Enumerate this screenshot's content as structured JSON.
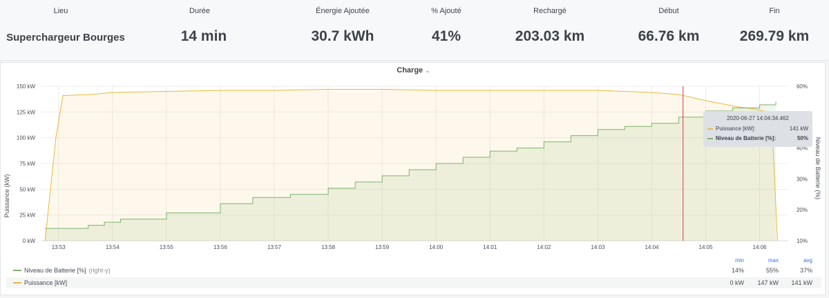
{
  "stats": [
    {
      "label": "Lieu",
      "value": "Superchargeur Bourges"
    },
    {
      "label": "Durée",
      "value": "14 min"
    },
    {
      "label": "Énergie Ajoutée",
      "value": "30.7 kWh"
    },
    {
      "label": "% Ajouté",
      "value": "41%"
    },
    {
      "label": "Rechargé",
      "value": "203.03 km"
    },
    {
      "label": "Début",
      "value": "66.76 km"
    },
    {
      "label": "Fin",
      "value": "269.79 km"
    }
  ],
  "panel": {
    "title": "Charge",
    "caret": "⌄"
  },
  "colors": {
    "power": "#eab839",
    "battery": "#7eb26d",
    "cursor": "#e02f44",
    "legend_head": "#3274d9"
  },
  "tooltip": {
    "time": "2020-06-27 14:04:34.462",
    "rows": [
      {
        "name": "Puissance [kW]:",
        "value": "141 kW"
      },
      {
        "name": "Niveau de Batterie [%]:",
        "value": "50%"
      }
    ]
  },
  "legend": {
    "headers": [
      "min",
      "max",
      "avg"
    ],
    "rows": [
      {
        "name": "Niveau de Batterie [%]",
        "axis": "(right-y)",
        "min": "14%",
        "max": "55%",
        "avg": "37%"
      },
      {
        "name": "Puissance [kW]",
        "axis": "",
        "min": "0 kW",
        "max": "147 kW",
        "avg": "141 kW"
      }
    ]
  },
  "chart_data": {
    "type": "area",
    "ylabel": "Puissance (kW)",
    "y2label": "Niveau de Batterie (%)",
    "ylim": [
      0,
      150
    ],
    "y2lim": [
      10,
      60
    ],
    "yticks": [
      "0 kW",
      "25 kW",
      "50 kW",
      "75 kW",
      "100 kW",
      "125 kW",
      "150 kW"
    ],
    "y2ticks": [
      "10%",
      "20%",
      "30%",
      "40%",
      "50%",
      "60%"
    ],
    "xticks": [
      "13:53",
      "13:54",
      "13:55",
      "13:56",
      "13:57",
      "13:58",
      "13:59",
      "14:00",
      "14:01",
      "14:02",
      "14:03",
      "14:04",
      "14:05",
      "14:06"
    ],
    "xlim_minutes": [
      -0.33,
      13.53
    ],
    "cursor_minute": 11.58,
    "grid": true,
    "series": [
      {
        "name": "Puissance [kW]",
        "axis": "left",
        "points": [
          [
            -0.25,
            0
          ],
          [
            -0.05,
            100
          ],
          [
            0.08,
            141
          ],
          [
            0.6,
            142
          ],
          [
            1.0,
            144
          ],
          [
            2.0,
            145
          ],
          [
            3.0,
            146
          ],
          [
            4.0,
            146
          ],
          [
            5.0,
            147
          ],
          [
            6.0,
            147
          ],
          [
            7.0,
            146
          ],
          [
            8.0,
            146
          ],
          [
            9.0,
            146
          ],
          [
            10.0,
            146
          ],
          [
            10.5,
            145
          ],
          [
            11.0,
            144
          ],
          [
            11.5,
            142
          ],
          [
            12.0,
            136
          ],
          [
            12.3,
            133
          ],
          [
            12.6,
            130
          ],
          [
            12.9,
            128
          ],
          [
            13.15,
            125
          ],
          [
            13.25,
            90
          ],
          [
            13.33,
            0
          ]
        ]
      },
      {
        "name": "Niveau de Batterie [%]",
        "axis": "right",
        "points": [
          [
            -0.25,
            14
          ],
          [
            0.3,
            14
          ],
          [
            0.55,
            15
          ],
          [
            0.85,
            16
          ],
          [
            1.15,
            17
          ],
          [
            2.0,
            19
          ],
          [
            3.0,
            22
          ],
          [
            3.6,
            24
          ],
          [
            4.0,
            24
          ],
          [
            4.3,
            25
          ],
          [
            5.0,
            27
          ],
          [
            5.5,
            29
          ],
          [
            6.0,
            31
          ],
          [
            6.5,
            33
          ],
          [
            7.0,
            35
          ],
          [
            7.5,
            37
          ],
          [
            8.0,
            39
          ],
          [
            8.5,
            40
          ],
          [
            9.0,
            42
          ],
          [
            9.5,
            44
          ],
          [
            10.0,
            46
          ],
          [
            10.5,
            47
          ],
          [
            11.0,
            48
          ],
          [
            11.5,
            50
          ],
          [
            12.0,
            52
          ],
          [
            12.5,
            53
          ],
          [
            13.0,
            54
          ],
          [
            13.3,
            55
          ]
        ]
      }
    ]
  }
}
